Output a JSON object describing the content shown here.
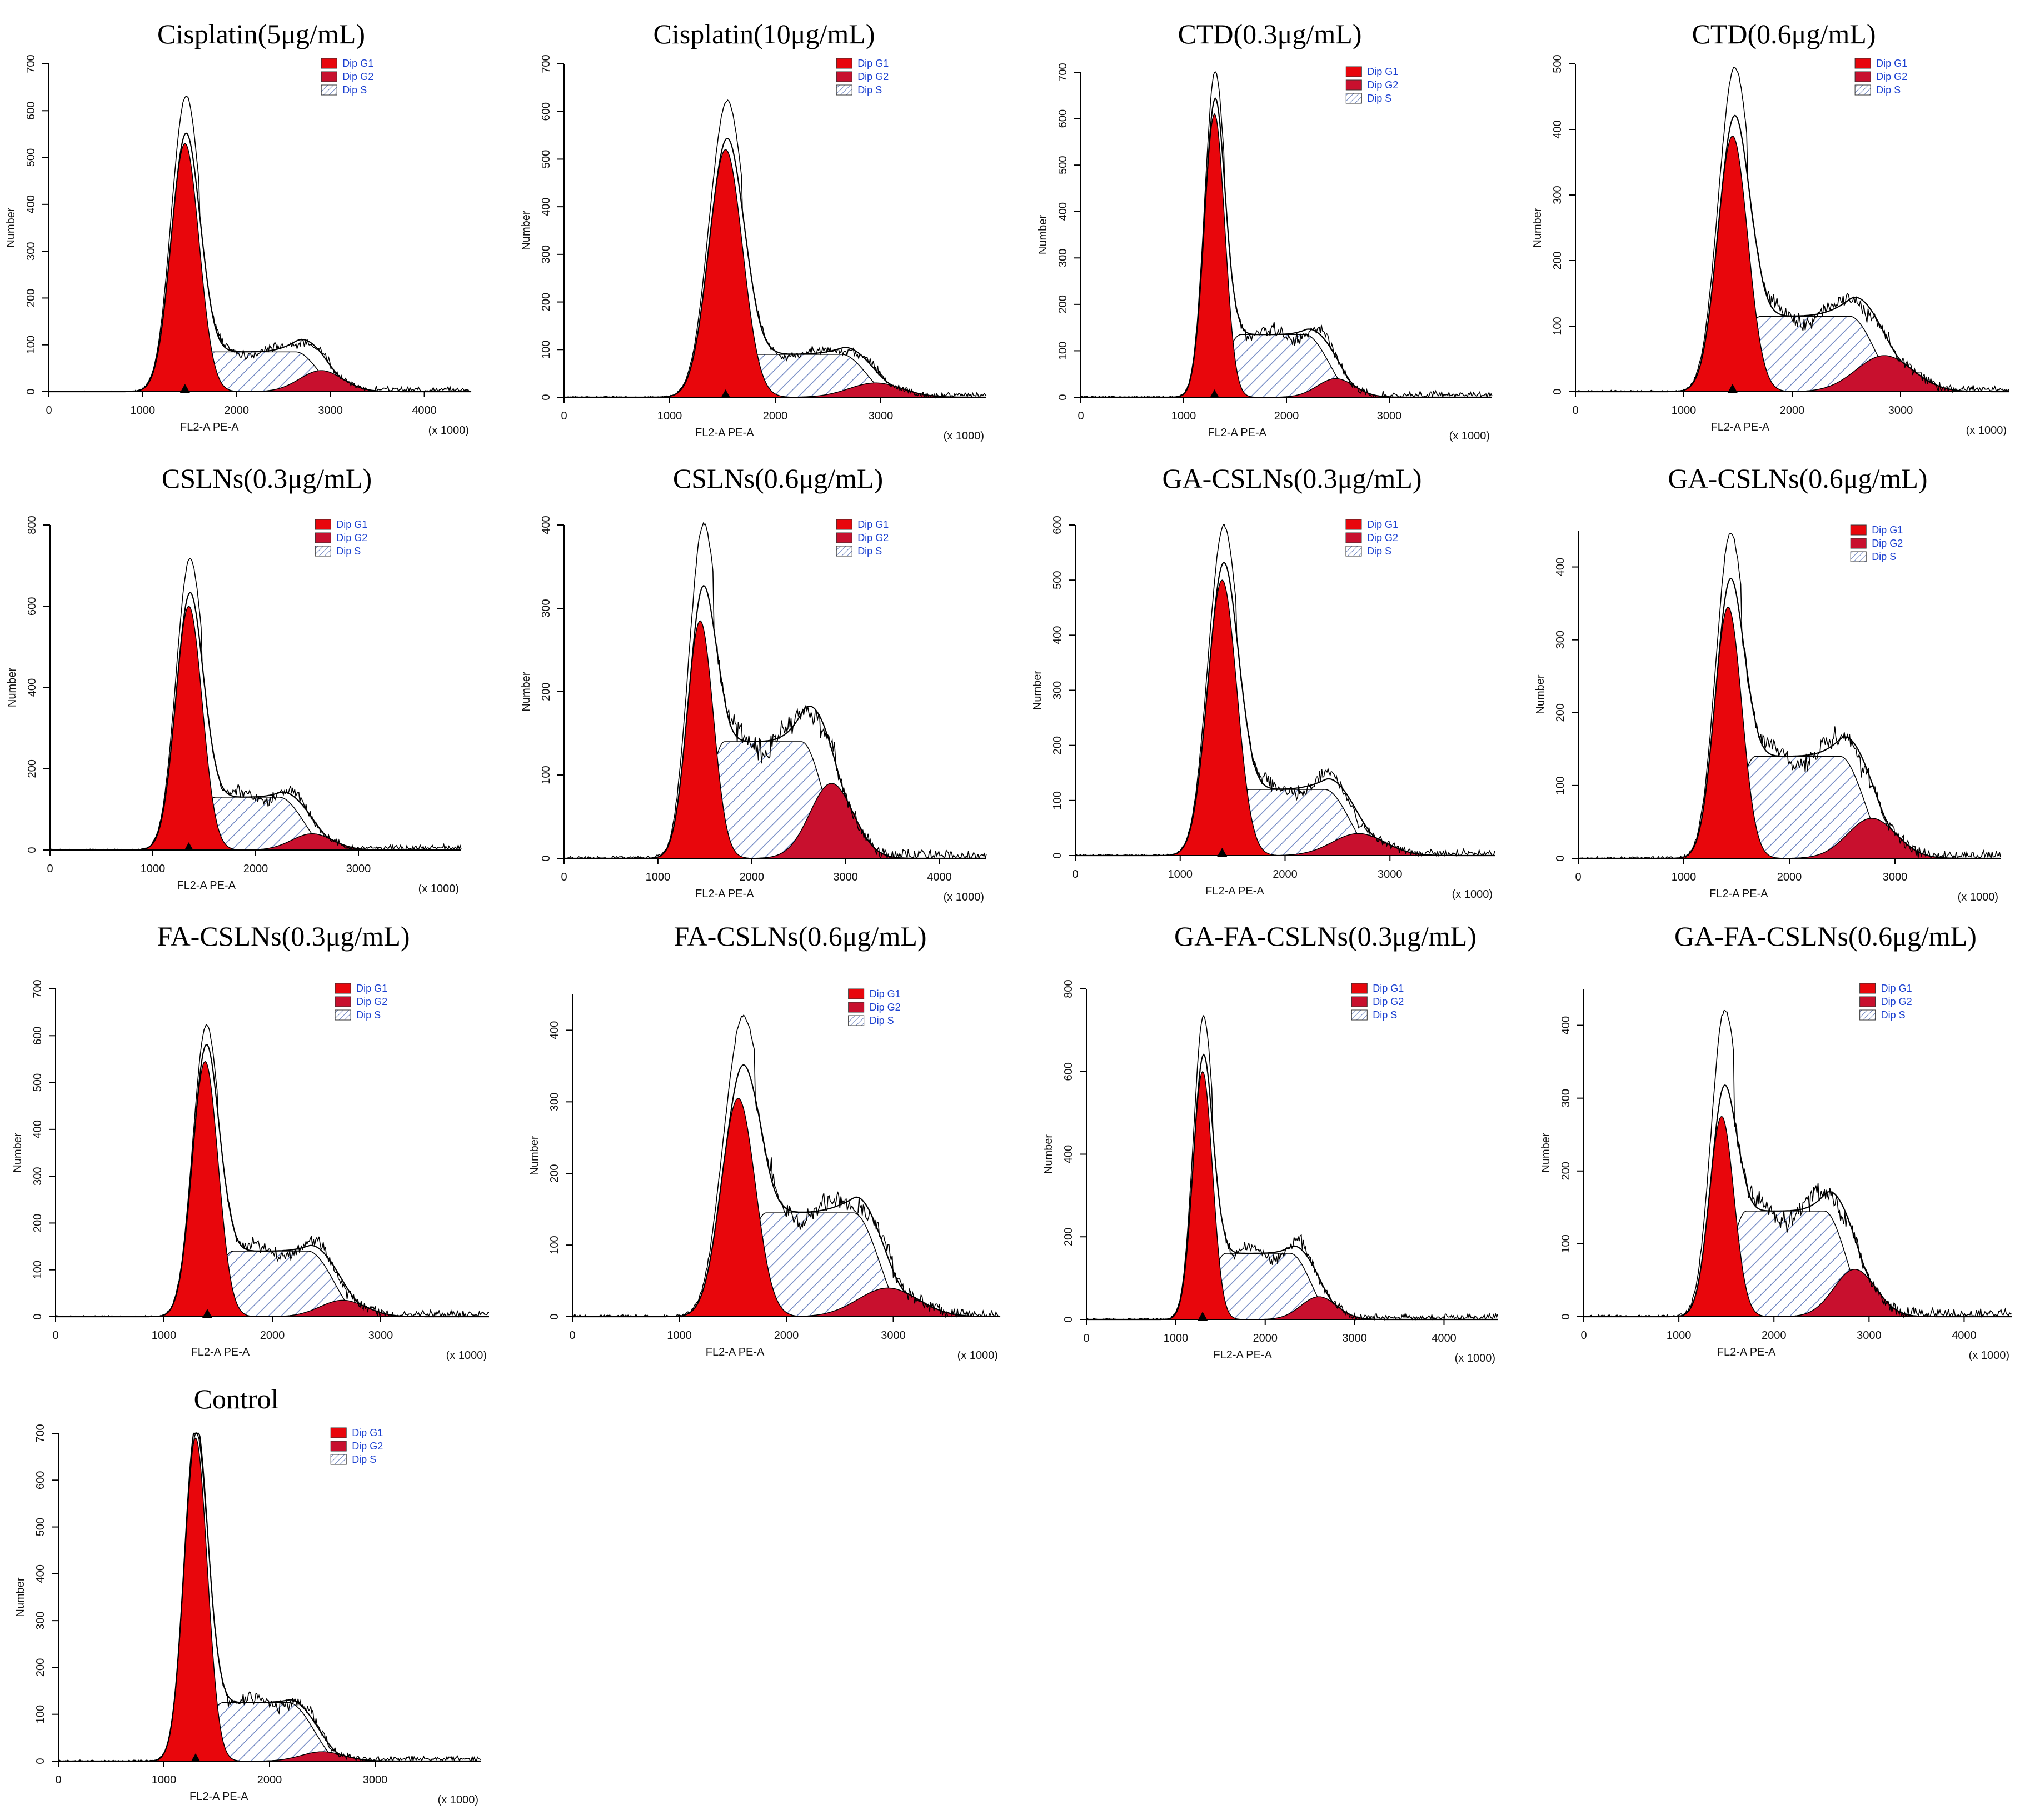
{
  "colors": {
    "g1_fill": "#e8060c",
    "g2_fill": "#c8102e",
    "s_hatch": "#6f86c2",
    "line": "#000000",
    "legend_text": "#1a3fd0"
  },
  "chart_data": [
    {
      "type": "histogram",
      "title": "Cisplatin(5μg/mL)",
      "xlabel": "FL2-A PE-A",
      "x_unit_label": "(x 1000)",
      "ylabel": "Number",
      "xlim": [
        0,
        4500
      ],
      "ylim": [
        0,
        700
      ],
      "xticks": [
        0,
        1000,
        2000,
        3000,
        4000
      ],
      "yticks": [
        0,
        100,
        200,
        300,
        400,
        500,
        600,
        700
      ],
      "legend": [
        "Dip G1",
        "Dip G2",
        "Dip S"
      ],
      "marker_x": 1450,
      "g1": {
        "mean": 1450,
        "sd": 150,
        "peak": 530
      },
      "s": {
        "start": 1450,
        "end": 2950,
        "level": 85
      },
      "g2": {
        "mean": 2900,
        "sd": 230,
        "peak": 45
      },
      "total_peak": 630
    },
    {
      "type": "histogram",
      "title": "Cisplatin(10μg/mL)",
      "xlabel": "FL2-A PE-A",
      "x_unit_label": "(x 1000)",
      "ylabel": "Number",
      "xlim": [
        0,
        4000
      ],
      "ylim": [
        0,
        700
      ],
      "xticks": [
        0,
        1000,
        2000,
        3000
      ],
      "yticks": [
        0,
        100,
        200,
        300,
        400,
        500,
        600,
        700
      ],
      "legend": [
        "Dip G1",
        "Dip G2",
        "Dip S"
      ],
      "marker_x": 1530,
      "g1": {
        "mean": 1530,
        "sd": 160,
        "peak": 520
      },
      "s": {
        "start": 1530,
        "end": 2950,
        "level": 90
      },
      "g2": {
        "mean": 2950,
        "sd": 250,
        "peak": 30
      },
      "total_peak": 620
    },
    {
      "type": "histogram",
      "title": "CTD(0.3μg/mL)",
      "xlabel": "FL2-A PE-A",
      "x_unit_label": "(x 1000)",
      "ylabel": "Number",
      "xlim": [
        0,
        4000
      ],
      "ylim": [
        0,
        700
      ],
      "xticks": [
        0,
        1000,
        2000,
        3000
      ],
      "yticks": [
        0,
        100,
        200,
        300,
        400,
        500,
        600,
        700
      ],
      "legend": [
        "Dip G1",
        "Dip G2",
        "Dip S"
      ],
      "marker_x": 1300,
      "g1": {
        "mean": 1300,
        "sd": 100,
        "peak": 610
      },
      "s": {
        "start": 1300,
        "end": 2500,
        "level": 135
      },
      "g2": {
        "mean": 2480,
        "sd": 180,
        "peak": 40
      },
      "total_peak": 700
    },
    {
      "type": "histogram",
      "title": "CTD(0.6μg/mL)",
      "xlabel": "FL2-A PE-A",
      "x_unit_label": "(x 1000)",
      "ylabel": "Number",
      "xlim": [
        0,
        4000
      ],
      "ylim": [
        0,
        500
      ],
      "xticks": [
        0,
        1000,
        2000,
        3000
      ],
      "yticks": [
        0,
        100,
        200,
        300,
        400,
        500
      ],
      "legend": [
        "Dip G1",
        "Dip G2",
        "Dip S"
      ],
      "marker_x": 1450,
      "g1": {
        "mean": 1450,
        "sd": 140,
        "peak": 390
      },
      "s": {
        "start": 1450,
        "end": 2850,
        "level": 115
      },
      "g2": {
        "mean": 2850,
        "sd": 260,
        "peak": 55
      },
      "total_peak": 490
    },
    {
      "type": "histogram",
      "title": "CSLNs(0.3μg/mL)",
      "xlabel": "FL2-A PE-A",
      "x_unit_label": "(x 1000)",
      "ylabel": "Number",
      "xlim": [
        0,
        4000
      ],
      "ylim": [
        0,
        800
      ],
      "xticks": [
        0,
        1000,
        2000,
        3000
      ],
      "yticks": [
        0,
        200,
        400,
        600,
        800
      ],
      "legend": [
        "Dip G1",
        "Dip G2",
        "Dip S"
      ],
      "marker_x": 1350,
      "g1": {
        "mean": 1350,
        "sd": 130,
        "peak": 600
      },
      "s": {
        "start": 1350,
        "end": 2550,
        "level": 130
      },
      "g2": {
        "mean": 2550,
        "sd": 200,
        "peak": 40
      },
      "total_peak": 715
    },
    {
      "type": "histogram",
      "title": "CSLNs(0.6μg/mL)",
      "xlabel": "FL2-A PE-A",
      "x_unit_label": "(x 1000)",
      "ylabel": "Number",
      "xlim": [
        0,
        4500
      ],
      "ylim": [
        0,
        400
      ],
      "xticks": [
        0,
        1000,
        2000,
        3000,
        4000
      ],
      "yticks": [
        0,
        100,
        200,
        300,
        400
      ],
      "legend": [
        "Dip G1",
        "Dip G2",
        "Dip S"
      ],
      "marker_x": null,
      "g1": {
        "mean": 1450,
        "sd": 140,
        "peak": 285
      },
      "s": {
        "start": 1450,
        "end": 2850,
        "level": 140
      },
      "g2": {
        "mean": 2850,
        "sd": 230,
        "peak": 90
      },
      "total_peak": 390
    },
    {
      "type": "histogram",
      "title": "GA-CSLNs(0.3μg/mL)",
      "xlabel": "FL2-A PE-A",
      "x_unit_label": "(x 1000)",
      "ylabel": "Number",
      "xlim": [
        0,
        4000
      ],
      "ylim": [
        0,
        600
      ],
      "xticks": [
        0,
        1000,
        2000,
        3000
      ],
      "yticks": [
        0,
        100,
        200,
        300,
        400,
        500,
        600
      ],
      "legend": [
        "Dip G1",
        "Dip G2",
        "Dip S"
      ],
      "marker_x": 1400,
      "g1": {
        "mean": 1400,
        "sd": 140,
        "peak": 500
      },
      "s": {
        "start": 1400,
        "end": 2700,
        "level": 120
      },
      "g2": {
        "mean": 2700,
        "sd": 250,
        "peak": 40
      },
      "total_peak": 595
    },
    {
      "type": "histogram",
      "title": "GA-CSLNs(0.6μg/mL)",
      "xlabel": "FL2-A PE-A",
      "x_unit_label": "(x 1000)",
      "ylabel": "Number",
      "xlim": [
        0,
        4000
      ],
      "ylim": [
        0,
        450
      ],
      "xticks": [
        0,
        1000,
        2000,
        3000
      ],
      "yticks": [
        0,
        100,
        200,
        300,
        400
      ],
      "legend": [
        "Dip G1",
        "Dip G2",
        "Dip S"
      ],
      "marker_x": null,
      "g1": {
        "mean": 1420,
        "sd": 130,
        "peak": 345
      },
      "s": {
        "start": 1420,
        "end": 2800,
        "level": 140
      },
      "g2": {
        "mean": 2780,
        "sd": 230,
        "peak": 55
      },
      "total_peak": 440
    },
    {
      "type": "histogram",
      "title": "FA-CSLNs(0.3μg/mL)",
      "xlabel": "FL2-A PE-A",
      "x_unit_label": "(x 1000)",
      "ylabel": "Number",
      "xlim": [
        0,
        4000
      ],
      "ylim": [
        0,
        700
      ],
      "xticks": [
        0,
        1000,
        2000,
        3000
      ],
      "yticks": [
        0,
        100,
        200,
        300,
        400,
        500,
        600,
        700
      ],
      "legend": [
        "Dip G1",
        "Dip G2",
        "Dip S"
      ],
      "marker_x": 1400,
      "g1": {
        "mean": 1380,
        "sd": 120,
        "peak": 545
      },
      "s": {
        "start": 1380,
        "end": 2650,
        "level": 140
      },
      "g2": {
        "mean": 2650,
        "sd": 210,
        "peak": 35
      },
      "total_peak": 620
    },
    {
      "type": "histogram",
      "title": "FA-CSLNs(0.6μg/mL)",
      "xlabel": "FL2-A PE-A",
      "x_unit_label": "(x 1000)",
      "ylabel": "Number",
      "xlim": [
        0,
        4000
      ],
      "ylim": [
        0,
        450
      ],
      "xticks": [
        0,
        1000,
        2000,
        3000
      ],
      "yticks": [
        0,
        100,
        200,
        300,
        400
      ],
      "legend": [
        "Dip G1",
        "Dip G2",
        "Dip S"
      ],
      "marker_x": null,
      "g1": {
        "mean": 1550,
        "sd": 160,
        "peak": 305
      },
      "s": {
        "start": 1550,
        "end": 2950,
        "level": 145
      },
      "g2": {
        "mean": 2950,
        "sd": 280,
        "peak": 40
      },
      "total_peak": 405
    },
    {
      "type": "histogram",
      "title": "GA-FA-CSLNs(0.3μg/mL)",
      "xlabel": "FL2-A PE-A",
      "x_unit_label": "(x 1000)",
      "ylabel": "Number",
      "xlim": [
        0,
        4600
      ],
      "ylim": [
        0,
        800
      ],
      "xticks": [
        0,
        1000,
        2000,
        3000,
        4000
      ],
      "yticks": [
        0,
        200,
        400,
        600,
        800
      ],
      "legend": [
        "Dip G1",
        "Dip G2",
        "Dip S"
      ],
      "marker_x": 1300,
      "g1": {
        "mean": 1300,
        "sd": 110,
        "peak": 600
      },
      "s": {
        "start": 1300,
        "end": 2600,
        "level": 160
      },
      "g2": {
        "mean": 2600,
        "sd": 200,
        "peak": 55
      },
      "total_peak": 730
    },
    {
      "type": "histogram",
      "title": "GA-FA-CSLNs(0.6μg/mL)",
      "xlabel": "FL2-A PE-A",
      "x_unit_label": "(x 1000)",
      "ylabel": "Number",
      "xlim": [
        0,
        4500
      ],
      "ylim": [
        0,
        450
      ],
      "xticks": [
        0,
        1000,
        2000,
        3000,
        4000
      ],
      "yticks": [
        0,
        100,
        200,
        300,
        400
      ],
      "legend": [
        "Dip G1",
        "Dip G2",
        "Dip S"
      ],
      "marker_x": null,
      "g1": {
        "mean": 1450,
        "sd": 130,
        "peak": 275
      },
      "s": {
        "start": 1450,
        "end": 2850,
        "level": 145
      },
      "g2": {
        "mean": 2850,
        "sd": 220,
        "peak": 65
      },
      "total_peak": 410
    },
    {
      "type": "histogram",
      "title": "Control",
      "xlabel": "FL2-A PE-A",
      "x_unit_label": "(x 1000)",
      "ylabel": "Number",
      "xlim": [
        0,
        4000
      ],
      "ylim": [
        0,
        700
      ],
      "xticks": [
        0,
        1000,
        2000,
        3000
      ],
      "yticks": [
        0,
        100,
        200,
        300,
        400,
        500,
        600,
        700
      ],
      "legend": [
        "Dip G1",
        "Dip G2",
        "Dip S"
      ],
      "marker_x": 1300,
      "g1": {
        "mean": 1300,
        "sd": 110,
        "peak": 690
      },
      "s": {
        "start": 1300,
        "end": 2500,
        "level": 125
      },
      "g2": {
        "mean": 2500,
        "sd": 200,
        "peak": 20
      },
      "total_peak": 700
    }
  ]
}
